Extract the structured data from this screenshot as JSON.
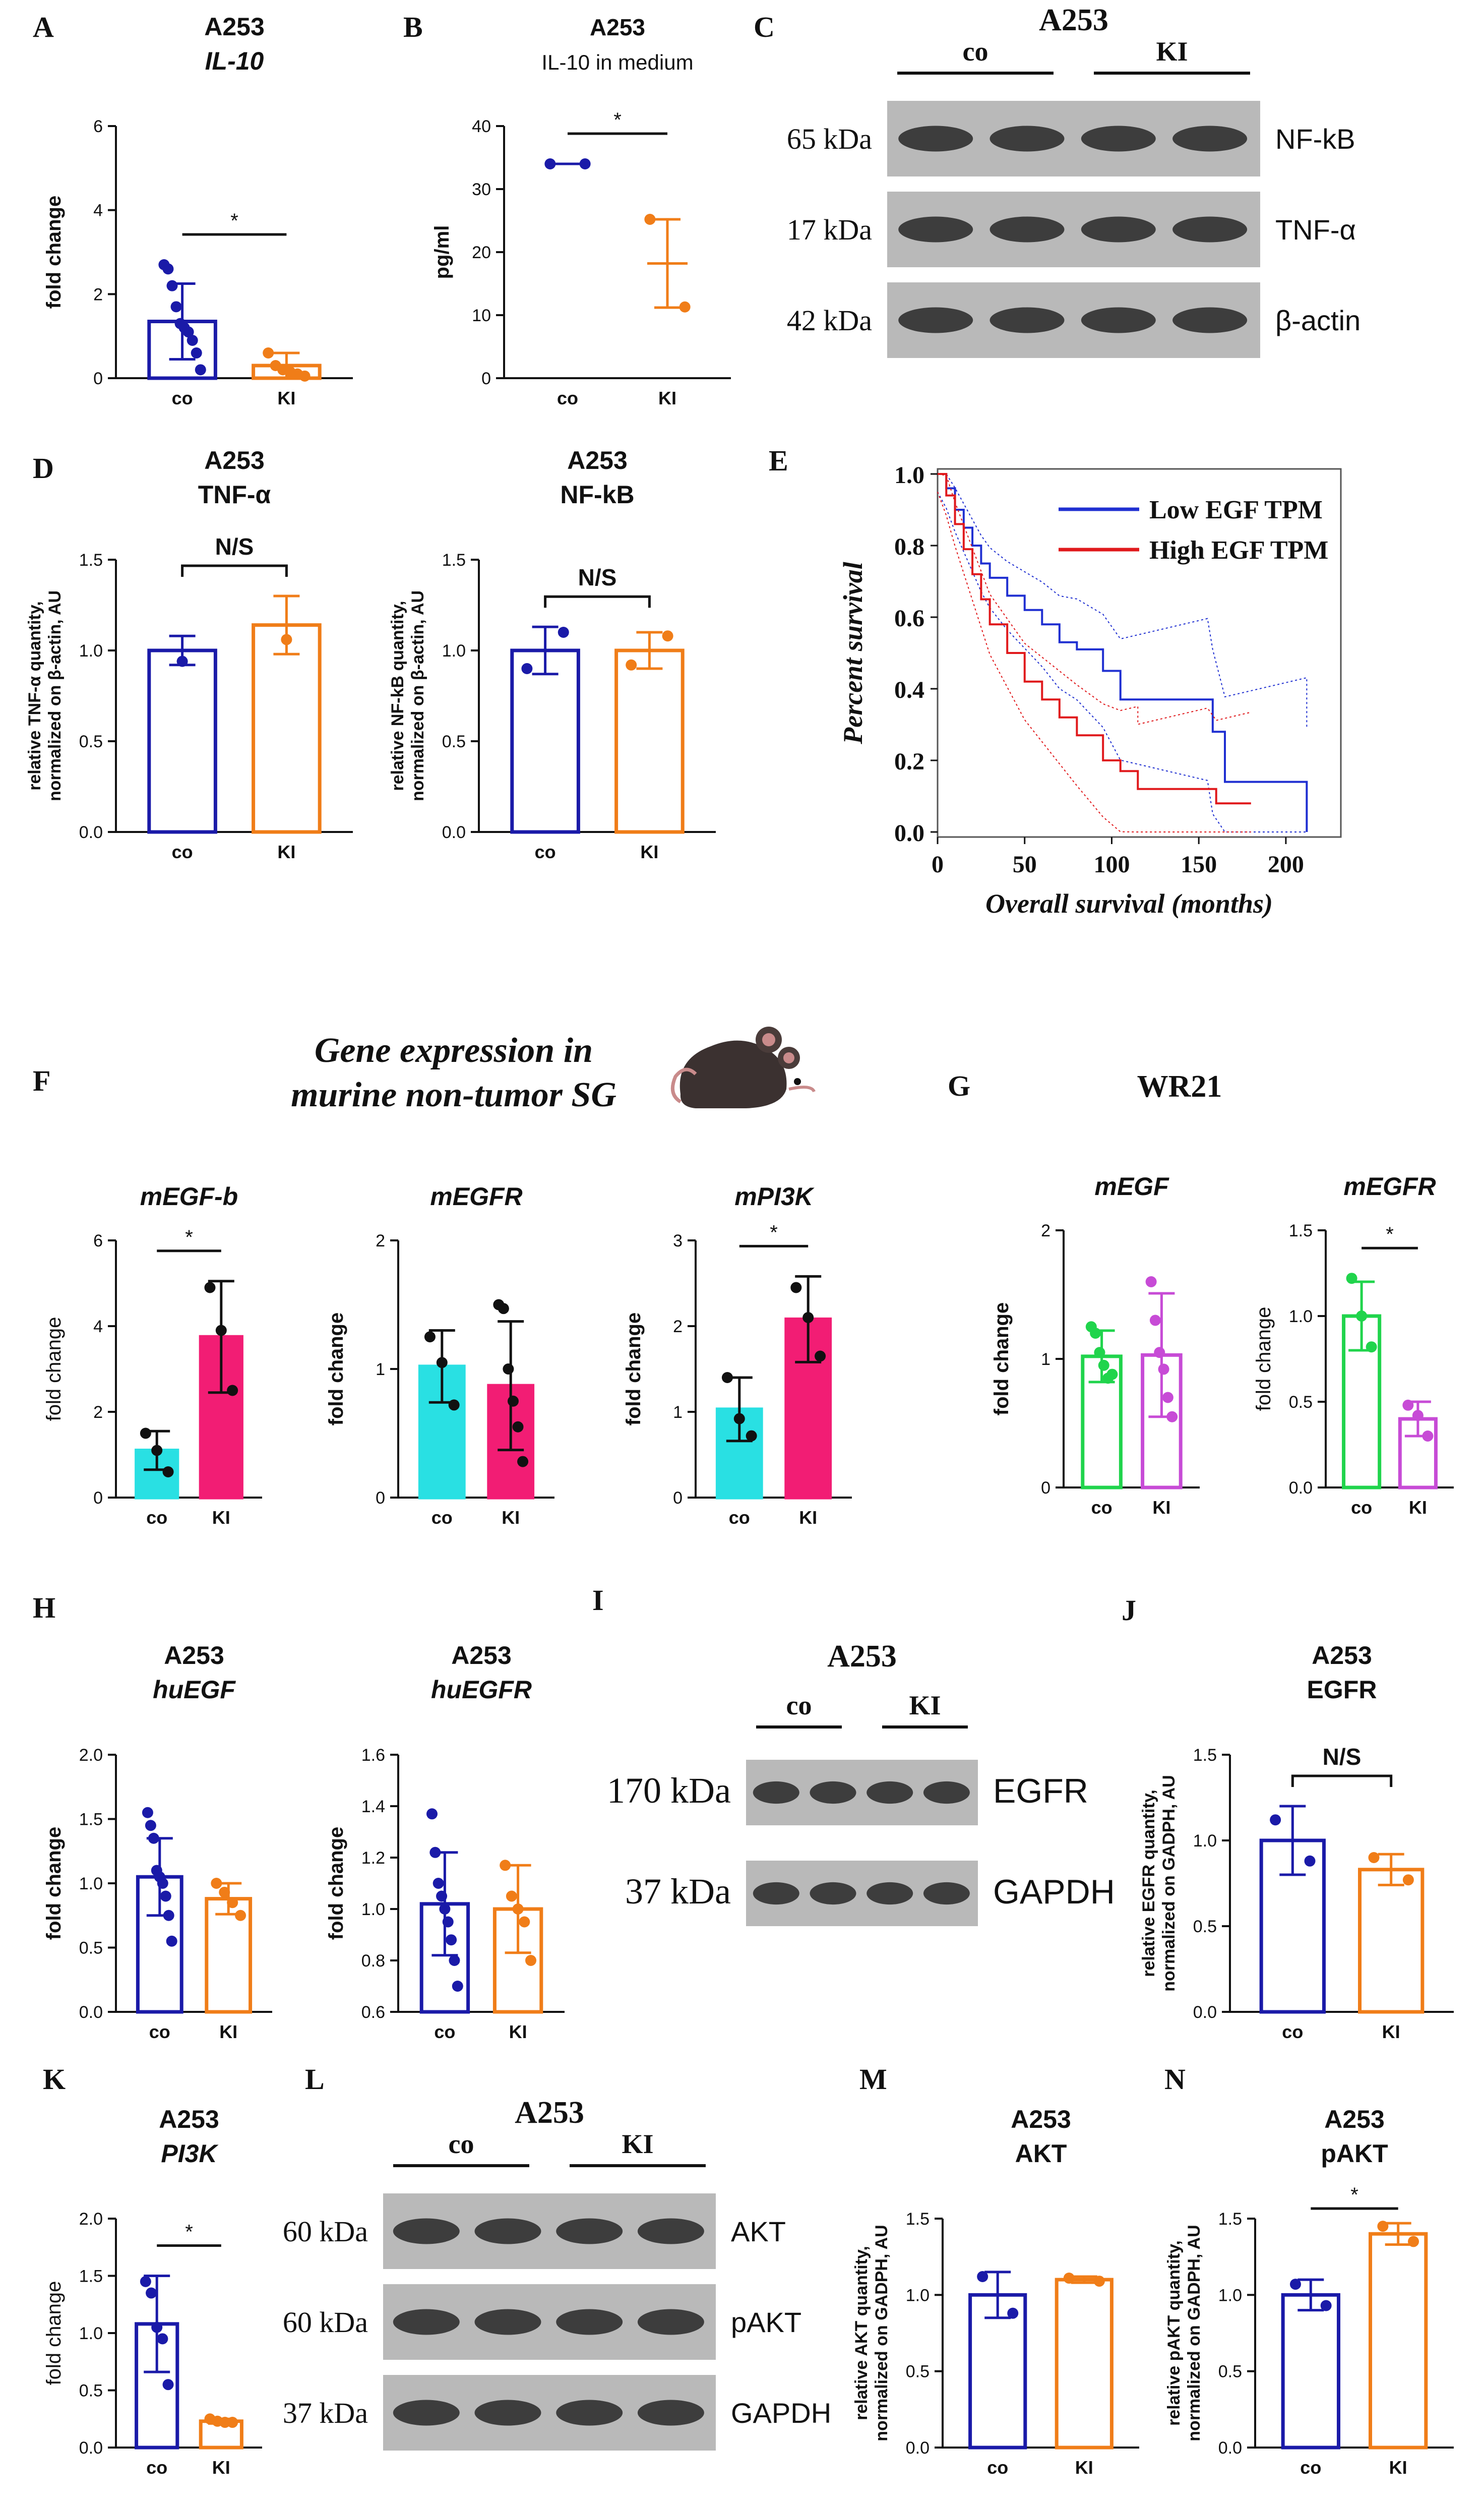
{
  "panel_labels": [
    "A",
    "B",
    "C",
    "D",
    "E",
    "F",
    "G",
    "H",
    "I",
    "J",
    "K",
    "L",
    "M",
    "N"
  ],
  "colors": {
    "blue": "#1a1aa8",
    "orange": "#f07d18",
    "cyan": "#29e0e3",
    "magenta": "#f21d74",
    "green": "#20d44c",
    "violet": "#c74bd6",
    "km_low": "#1f2fd1",
    "km_high": "#e0191c",
    "black": "#111111"
  },
  "section_titles": {
    "F_title_line1": "Gene expression in",
    "F_title_line2": "murine non-tumor SG",
    "G_title": "WR21"
  },
  "westerns": {
    "C": {
      "title": "A253",
      "groups": [
        "co",
        "KI"
      ],
      "rows": [
        {
          "kda": "65 kDa",
          "protein": "NF-kB"
        },
        {
          "kda": "17 kDa",
          "protein": "TNF-α"
        },
        {
          "kda": "42 kDa",
          "protein": "β-actin"
        }
      ]
    },
    "I": {
      "title": "A253",
      "groups": [
        "co",
        "KI"
      ],
      "rows": [
        {
          "kda": "170 kDa",
          "protein": "EGFR"
        },
        {
          "kda": "37 kDa",
          "protein": "GAPDH"
        }
      ]
    },
    "L": {
      "title": "A253",
      "groups": [
        "co",
        "KI"
      ],
      "rows": [
        {
          "kda": "60 kDa",
          "protein": "AKT"
        },
        {
          "kda": "60 kDa",
          "protein": "pAKT"
        },
        {
          "kda": "37 kDa",
          "protein": "GAPDH"
        }
      ]
    }
  },
  "chart_data": [
    {
      "id": "A",
      "type": "bar",
      "title": "A253",
      "subtitle": "IL-10",
      "xlabel": "",
      "ylabel": "fold change",
      "categories": [
        "co",
        "KI"
      ],
      "series": [
        {
          "name": "co",
          "mean": 1.35,
          "sd": 0.9,
          "points": [
            2.7,
            2.6,
            2.2,
            1.7,
            1.3,
            1.2,
            1.1,
            0.9,
            0.6,
            0.2
          ]
        },
        {
          "name": "KI",
          "mean": 0.3,
          "sd": 0.3,
          "points": [
            0.6,
            0.3,
            0.2,
            0.15,
            0.1,
            0.05
          ]
        }
      ],
      "ylim": [
        0,
        6
      ],
      "yticks": [
        0,
        2,
        4,
        6
      ],
      "significance": "*"
    },
    {
      "id": "B",
      "type": "scatter",
      "title": "A253",
      "subtitle": "IL-10 in medium",
      "xlabel": "",
      "ylabel": "pg/ml",
      "categories": [
        "co",
        "KI"
      ],
      "series": [
        {
          "name": "co",
          "mean": 34,
          "sd": 0,
          "points": [
            34,
            34
          ]
        },
        {
          "name": "KI",
          "mean": 18.2,
          "sd": 7,
          "points": [
            25.2,
            11.3
          ]
        }
      ],
      "ylim": [
        0,
        40
      ],
      "yticks": [
        0,
        10,
        20,
        30,
        40
      ],
      "significance": "*"
    },
    {
      "id": "D1",
      "type": "bar",
      "title": "A253",
      "subtitle": "TNF-α",
      "xlabel": "",
      "ylabel": "relative TNF-α quantity, normalized on β-actin, AU",
      "categories": [
        "co",
        "KI"
      ],
      "series": [
        {
          "name": "co",
          "mean": 1.0,
          "sd": 0.08,
          "points": [
            0.94
          ]
        },
        {
          "name": "KI",
          "mean": 1.14,
          "sd": 0.16,
          "points": [
            1.06
          ]
        }
      ],
      "ylim": [
        0,
        1.5
      ],
      "yticks": [
        0.0,
        0.5,
        1.0,
        1.5
      ],
      "significance": "N/S"
    },
    {
      "id": "D2",
      "type": "bar",
      "title": "A253",
      "subtitle": "NF-kB",
      "xlabel": "",
      "ylabel": "relative NF-kB quantity, normalized on β-actin, AU",
      "categories": [
        "co",
        "KI"
      ],
      "series": [
        {
          "name": "co",
          "mean": 1.0,
          "sd": 0.13,
          "points": [
            0.9,
            1.1
          ]
        },
        {
          "name": "KI",
          "mean": 1.0,
          "sd": 0.1,
          "points": [
            0.92,
            1.08
          ]
        }
      ],
      "ylim": [
        0,
        1.5
      ],
      "yticks": [
        0.0,
        0.5,
        1.0,
        1.5
      ],
      "significance": "N/S"
    },
    {
      "id": "E",
      "type": "line",
      "title": "",
      "xlabel": "Overall survival (months)",
      "ylabel": "Percent survival",
      "xlim": [
        0,
        220
      ],
      "ylim": [
        0,
        1.0
      ],
      "xticks": [
        0,
        50,
        100,
        150,
        200
      ],
      "yticks": [
        0.0,
        0.2,
        0.4,
        0.6,
        0.8,
        1.0
      ],
      "legend": [
        "Low EGF TPM",
        "High EGF TPM"
      ],
      "series": [
        {
          "name": "Low EGF TPM",
          "points": [
            [
              0,
              1.0
            ],
            [
              5,
              0.96
            ],
            [
              10,
              0.9
            ],
            [
              15,
              0.85
            ],
            [
              20,
              0.8
            ],
            [
              25,
              0.75
            ],
            [
              30,
              0.71
            ],
            [
              40,
              0.66
            ],
            [
              50,
              0.62
            ],
            [
              60,
              0.58
            ],
            [
              70,
              0.53
            ],
            [
              80,
              0.51
            ],
            [
              95,
              0.45
            ],
            [
              105,
              0.37
            ],
            [
              140,
              0.37
            ],
            [
              155,
              0.37
            ],
            [
              158,
              0.28
            ],
            [
              165,
              0.14
            ],
            [
              212,
              0.14
            ],
            [
              212,
              0.0
            ]
          ]
        },
        {
          "name": "High EGF TPM",
          "points": [
            [
              0,
              1.0
            ],
            [
              5,
              0.94
            ],
            [
              10,
              0.86
            ],
            [
              15,
              0.79
            ],
            [
              20,
              0.72
            ],
            [
              25,
              0.65
            ],
            [
              30,
              0.58
            ],
            [
              40,
              0.5
            ],
            [
              50,
              0.42
            ],
            [
              60,
              0.37
            ],
            [
              70,
              0.32
            ],
            [
              80,
              0.27
            ],
            [
              95,
              0.2
            ],
            [
              105,
              0.17
            ],
            [
              115,
              0.17
            ],
            [
              115,
              0.12
            ],
            [
              155,
              0.12
            ],
            [
              160,
              0.08
            ],
            [
              180,
              0.08
            ]
          ]
        }
      ]
    },
    {
      "id": "F1",
      "type": "bar",
      "title": "mEGF-b",
      "xlabel": "",
      "ylabel": "fold change",
      "categories": [
        "co",
        "KI"
      ],
      "series": [
        {
          "name": "co",
          "mean": 1.1,
          "sd": 0.45,
          "points": [
            1.5,
            1.1,
            0.6
          ]
        },
        {
          "name": "KI",
          "mean": 3.75,
          "sd": 1.3,
          "points": [
            4.9,
            3.9,
            2.5
          ]
        }
      ],
      "ylim": [
        0,
        6
      ],
      "yticks": [
        0,
        2,
        4,
        6
      ],
      "significance": "*"
    },
    {
      "id": "F2",
      "type": "bar",
      "title": "mEGFR",
      "xlabel": "",
      "ylabel": "fold change",
      "categories": [
        "co",
        "KI"
      ],
      "series": [
        {
          "name": "co",
          "mean": 1.02,
          "sd": 0.28,
          "points": [
            1.25,
            1.05,
            0.72
          ]
        },
        {
          "name": "KI",
          "mean": 0.87,
          "sd": 0.5,
          "points": [
            1.5,
            1.47,
            1.0,
            0.75,
            0.55,
            0.28
          ]
        }
      ],
      "ylim": [
        0,
        2
      ],
      "yticks": [
        0,
        1,
        2
      ],
      "significance": ""
    },
    {
      "id": "F3",
      "type": "bar",
      "title": "mPI3K",
      "xlabel": "",
      "ylabel": "fold change",
      "categories": [
        "co",
        "KI"
      ],
      "series": [
        {
          "name": "co",
          "mean": 1.03,
          "sd": 0.37,
          "points": [
            1.4,
            0.92,
            0.72
          ]
        },
        {
          "name": "KI",
          "mean": 2.08,
          "sd": 0.5,
          "points": [
            2.45,
            2.1,
            1.65
          ]
        }
      ],
      "ylim": [
        0,
        3
      ],
      "yticks": [
        0,
        1,
        2,
        3
      ],
      "significance": "*"
    },
    {
      "id": "G1",
      "type": "bar",
      "title": "mEGF",
      "xlabel": "",
      "ylabel": "fold change",
      "categories": [
        "co",
        "KI"
      ],
      "series": [
        {
          "name": "co",
          "mean": 1.02,
          "sd": 0.2,
          "points": [
            1.25,
            1.2,
            1.05,
            0.95,
            0.85,
            0.88
          ]
        },
        {
          "name": "KI",
          "mean": 1.03,
          "sd": 0.48,
          "points": [
            1.6,
            1.3,
            1.05,
            0.92,
            0.7,
            0.55
          ]
        }
      ],
      "ylim": [
        0,
        2
      ],
      "yticks": [
        0,
        1,
        2
      ],
      "significance": ""
    },
    {
      "id": "G2",
      "type": "bar",
      "title": "mEGFR",
      "xlabel": "",
      "ylabel": "fold change",
      "categories": [
        "co",
        "KI"
      ],
      "series": [
        {
          "name": "co",
          "mean": 1.0,
          "sd": 0.2,
          "points": [
            1.22,
            1.0,
            0.82
          ]
        },
        {
          "name": "KI",
          "mean": 0.4,
          "sd": 0.1,
          "points": [
            0.48,
            0.42,
            0.3
          ]
        }
      ],
      "ylim": [
        0,
        1.5
      ],
      "yticks": [
        0.0,
        0.5,
        1.0,
        1.5
      ],
      "significance": "*"
    },
    {
      "id": "H1",
      "type": "bar",
      "title": "A253",
      "subtitle": "huEGF",
      "xlabel": "",
      "ylabel": "fold change",
      "categories": [
        "co",
        "KI"
      ],
      "series": [
        {
          "name": "co",
          "mean": 1.05,
          "sd": 0.3,
          "points": [
            1.55,
            1.45,
            1.35,
            1.1,
            1.05,
            1.0,
            0.9,
            0.75,
            0.55
          ]
        },
        {
          "name": "KI",
          "mean": 0.88,
          "sd": 0.12,
          "points": [
            1.0,
            0.93,
            0.85,
            0.75
          ]
        }
      ],
      "ylim": [
        0,
        2.0
      ],
      "yticks": [
        0.0,
        0.5,
        1.0,
        1.5,
        2.0
      ],
      "significance": ""
    },
    {
      "id": "H2",
      "type": "bar",
      "title": "A253",
      "subtitle": "huEGFR",
      "xlabel": "",
      "ylabel": "fold change",
      "categories": [
        "co",
        "KI"
      ],
      "series": [
        {
          "name": "co",
          "mean": 1.02,
          "sd": 0.2,
          "points": [
            1.37,
            1.22,
            1.1,
            1.05,
            1.0,
            0.95,
            0.88,
            0.8,
            0.7
          ]
        },
        {
          "name": "KI",
          "mean": 1.0,
          "sd": 0.17,
          "points": [
            1.17,
            1.05,
            1.0,
            0.95,
            0.8
          ]
        }
      ],
      "ylim": [
        0.6,
        1.6
      ],
      "yticks": [
        0.6,
        0.8,
        1.0,
        1.2,
        1.4,
        1.6
      ],
      "significance": ""
    },
    {
      "id": "J",
      "type": "bar",
      "title": "A253",
      "subtitle": "EGFR",
      "xlabel": "",
      "ylabel": "relative EGFR quantity, normalized on GADPH, AU",
      "categories": [
        "co",
        "KI"
      ],
      "series": [
        {
          "name": "co",
          "mean": 1.0,
          "sd": 0.2,
          "points": [
            1.12,
            0.88
          ]
        },
        {
          "name": "KI",
          "mean": 0.83,
          "sd": 0.09,
          "points": [
            0.9,
            0.77
          ]
        }
      ],
      "ylim": [
        0,
        1.5
      ],
      "yticks": [
        0.0,
        0.5,
        1.0,
        1.5
      ],
      "significance": "N/S"
    },
    {
      "id": "K",
      "type": "bar",
      "title": "A253",
      "subtitle": "PI3K",
      "xlabel": "",
      "ylabel": "fold change",
      "categories": [
        "co",
        "KI"
      ],
      "series": [
        {
          "name": "co",
          "mean": 1.08,
          "sd": 0.42,
          "points": [
            1.45,
            1.35,
            1.05,
            0.95,
            0.55
          ]
        },
        {
          "name": "KI",
          "mean": 0.23,
          "sd": 0.02,
          "points": [
            0.25,
            0.23,
            0.22,
            0.22
          ]
        }
      ],
      "ylim": [
        0,
        2.0
      ],
      "yticks": [
        0.0,
        0.5,
        1.0,
        1.5,
        2.0
      ],
      "significance": "*"
    },
    {
      "id": "M",
      "type": "bar",
      "title": "A253",
      "subtitle": "AKT",
      "xlabel": "",
      "ylabel": "relative AKT quantity, normalized on GADPH, AU",
      "categories": [
        "co",
        "KI"
      ],
      "series": [
        {
          "name": "co",
          "mean": 1.0,
          "sd": 0.15,
          "points": [
            1.12,
            0.88
          ]
        },
        {
          "name": "KI",
          "mean": 1.1,
          "sd": 0.02,
          "points": [
            1.11,
            1.09
          ]
        }
      ],
      "ylim": [
        0,
        1.5
      ],
      "yticks": [
        0.0,
        0.5,
        1.0,
        1.5
      ],
      "significance": ""
    },
    {
      "id": "N",
      "type": "bar",
      "title": "A253",
      "subtitle": "pAKT",
      "xlabel": "",
      "ylabel": "relative pAKT quantity, normalized on GADPH, AU",
      "categories": [
        "co",
        "KI"
      ],
      "series": [
        {
          "name": "co",
          "mean": 1.0,
          "sd": 0.1,
          "points": [
            1.07,
            0.93
          ]
        },
        {
          "name": "KI",
          "mean": 1.4,
          "sd": 0.07,
          "points": [
            1.45,
            1.35
          ]
        }
      ],
      "ylim": [
        0,
        1.5
      ],
      "yticks": [
        0.0,
        0.5,
        1.0,
        1.5
      ],
      "significance": "*"
    }
  ]
}
